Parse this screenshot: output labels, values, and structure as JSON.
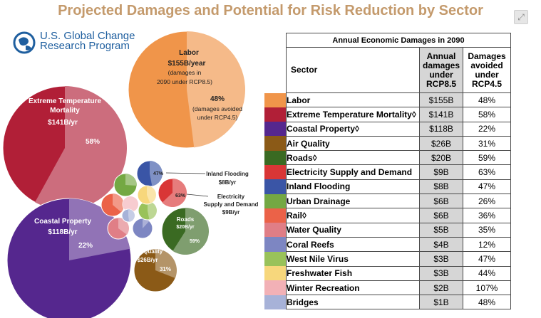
{
  "title": "Projected Damages and Potential for Risk Reduction by Sector",
  "logo": {
    "line1": "U.S. Global Change",
    "line2": "Research Program"
  },
  "icons": {
    "expand": "expand-icon",
    "logo": "globe-icon"
  },
  "table": {
    "super_header": "Annual Economic Damages in 2090",
    "col_sector": "Sector",
    "col_damages": "Annual damages under RCP8.5",
    "col_avoided": "Damages avoided under RCP4.5"
  },
  "bubble_labels": {
    "labor": {
      "name": "Labor",
      "value": "$155B/year",
      "note1": "(damages in",
      "note2": "2090 under RCP8.5)",
      "pct": "48%",
      "pct_note1": "(damages avoided",
      "pct_note2": "under RCP4.5)"
    },
    "extreme": {
      "name1": "Extreme Temperature",
      "name2": "Mortality",
      "value": "$141B/yr",
      "pct": "58%"
    },
    "coastal": {
      "name": "Coastal Property",
      "value": "$118B/yr",
      "pct": "22%"
    },
    "air": {
      "name": "Air Quality",
      "value": "$26B/yr",
      "pct": "31%"
    },
    "roads": {
      "name": "Roads",
      "value": "$20B/yr",
      "pct": "59%"
    },
    "flooding": {
      "name": "Inland Flooding",
      "value": "$8B/yr",
      "pct": "47%"
    },
    "electricity": {
      "name1": "Electricity",
      "name2": "Supply and Demand",
      "value": "$9B/yr",
      "pct": "63%"
    }
  },
  "chart_data": {
    "type": "table",
    "title": "Projected Damages and Potential for Risk Reduction by Sector",
    "columns": [
      "Sector",
      "Annual damages under RCP8.5",
      "Damages avoided under RCP4.5"
    ],
    "rows": [
      {
        "sector": "Labor",
        "damages": "$155B",
        "avoided": "48%",
        "damages_b": 155,
        "avoided_pct": 48,
        "color": "#f0954a"
      },
      {
        "sector": "Extreme Temperature Mortality◊",
        "damages": "$141B",
        "avoided": "58%",
        "damages_b": 141,
        "avoided_pct": 58,
        "color": "#b11f37"
      },
      {
        "sector": "Coastal Property◊",
        "damages": "$118B",
        "avoided": "22%",
        "damages_b": 118,
        "avoided_pct": 22,
        "color": "#55278e"
      },
      {
        "sector": "Air Quality",
        "damages": "$26B",
        "avoided": "31%",
        "damages_b": 26,
        "avoided_pct": 31,
        "color": "#8b5a17"
      },
      {
        "sector": "Roads◊",
        "damages": "$20B",
        "avoided": "59%",
        "damages_b": 20,
        "avoided_pct": 59,
        "color": "#3a6a22"
      },
      {
        "sector": "Electricity Supply and Demand",
        "damages": "$9B",
        "avoided": "63%",
        "damages_b": 9,
        "avoided_pct": 63,
        "color": "#d93636"
      },
      {
        "sector": "Inland Flooding",
        "damages": "$8B",
        "avoided": "47%",
        "damages_b": 8,
        "avoided_pct": 47,
        "color": "#3a55a6"
      },
      {
        "sector": "Urban Drainage",
        "damages": "$6B",
        "avoided": "26%",
        "damages_b": 6,
        "avoided_pct": 26,
        "color": "#74a843"
      },
      {
        "sector": "Rail◊",
        "damages": "$6B",
        "avoided": "36%",
        "damages_b": 6,
        "avoided_pct": 36,
        "color": "#eb6248"
      },
      {
        "sector": "Water Quality",
        "damages": "$5B",
        "avoided": "35%",
        "damages_b": 5,
        "avoided_pct": 35,
        "color": "#e07e86"
      },
      {
        "sector": "Coral Reefs",
        "damages": "$4B",
        "avoided": "12%",
        "damages_b": 4,
        "avoided_pct": 12,
        "color": "#7d86c2"
      },
      {
        "sector": "West Nile Virus",
        "damages": "$3B",
        "avoided": "47%",
        "damages_b": 3,
        "avoided_pct": 47,
        "color": "#99c25a"
      },
      {
        "sector": "Freshwater Fish",
        "damages": "$3B",
        "avoided": "44%",
        "damages_b": 3,
        "avoided_pct": 44,
        "color": "#f7d77c"
      },
      {
        "sector": "Winter Recreation",
        "damages": "$2B",
        "avoided": "107%",
        "damages_b": 2,
        "avoided_pct": 107,
        "color": "#f2b1b6"
      },
      {
        "sector": "Bridges",
        "damages": "$1B",
        "avoided": "48%",
        "damages_b": 1,
        "avoided_pct": 48,
        "color": "#a7b2d8"
      }
    ]
  }
}
